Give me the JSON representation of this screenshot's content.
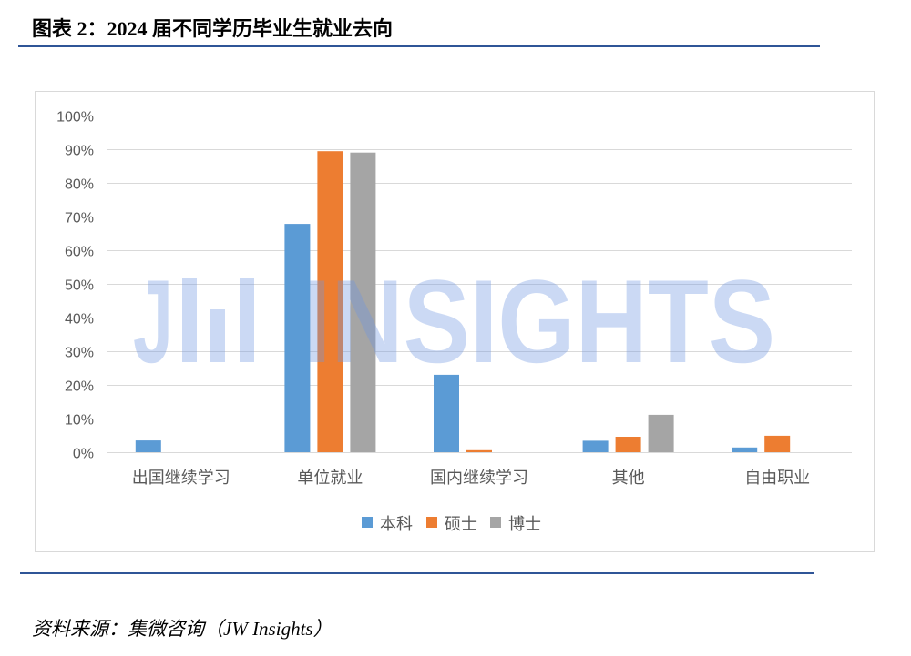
{
  "title": "图表 2：2024 届不同学历毕业生就业去向",
  "source": "资料来源：集微咨询（JW Insights）",
  "watermark": {
    "letter": "J",
    "text": "INSIGHTS"
  },
  "colors": {
    "rule": "#2F5597",
    "grid": "#D9D9D9",
    "watermark": "#6F95E0"
  },
  "chart_data": {
    "type": "bar",
    "categories": [
      "出国继续学习",
      "单位就业",
      "国内继续学习",
      "其他",
      "自由职业"
    ],
    "series": [
      {
        "name": "本科",
        "color": "#5B9BD5",
        "values": [
          3.5,
          67.8,
          23.0,
          3.4,
          1.4
        ]
      },
      {
        "name": "硕士",
        "color": "#ED7D31",
        "values": [
          0,
          89.4,
          0.6,
          4.6,
          4.9
        ]
      },
      {
        "name": "博士",
        "color": "#A5A5A5",
        "values": [
          0,
          89.0,
          0,
          11.1,
          0
        ]
      }
    ],
    "ylim": [
      0,
      100
    ],
    "yticks": [
      "0%",
      "10%",
      "20%",
      "30%",
      "40%",
      "50%",
      "60%",
      "70%",
      "80%",
      "90%",
      "100%"
    ],
    "unit": "%",
    "grid": true,
    "legend": "bottom"
  }
}
